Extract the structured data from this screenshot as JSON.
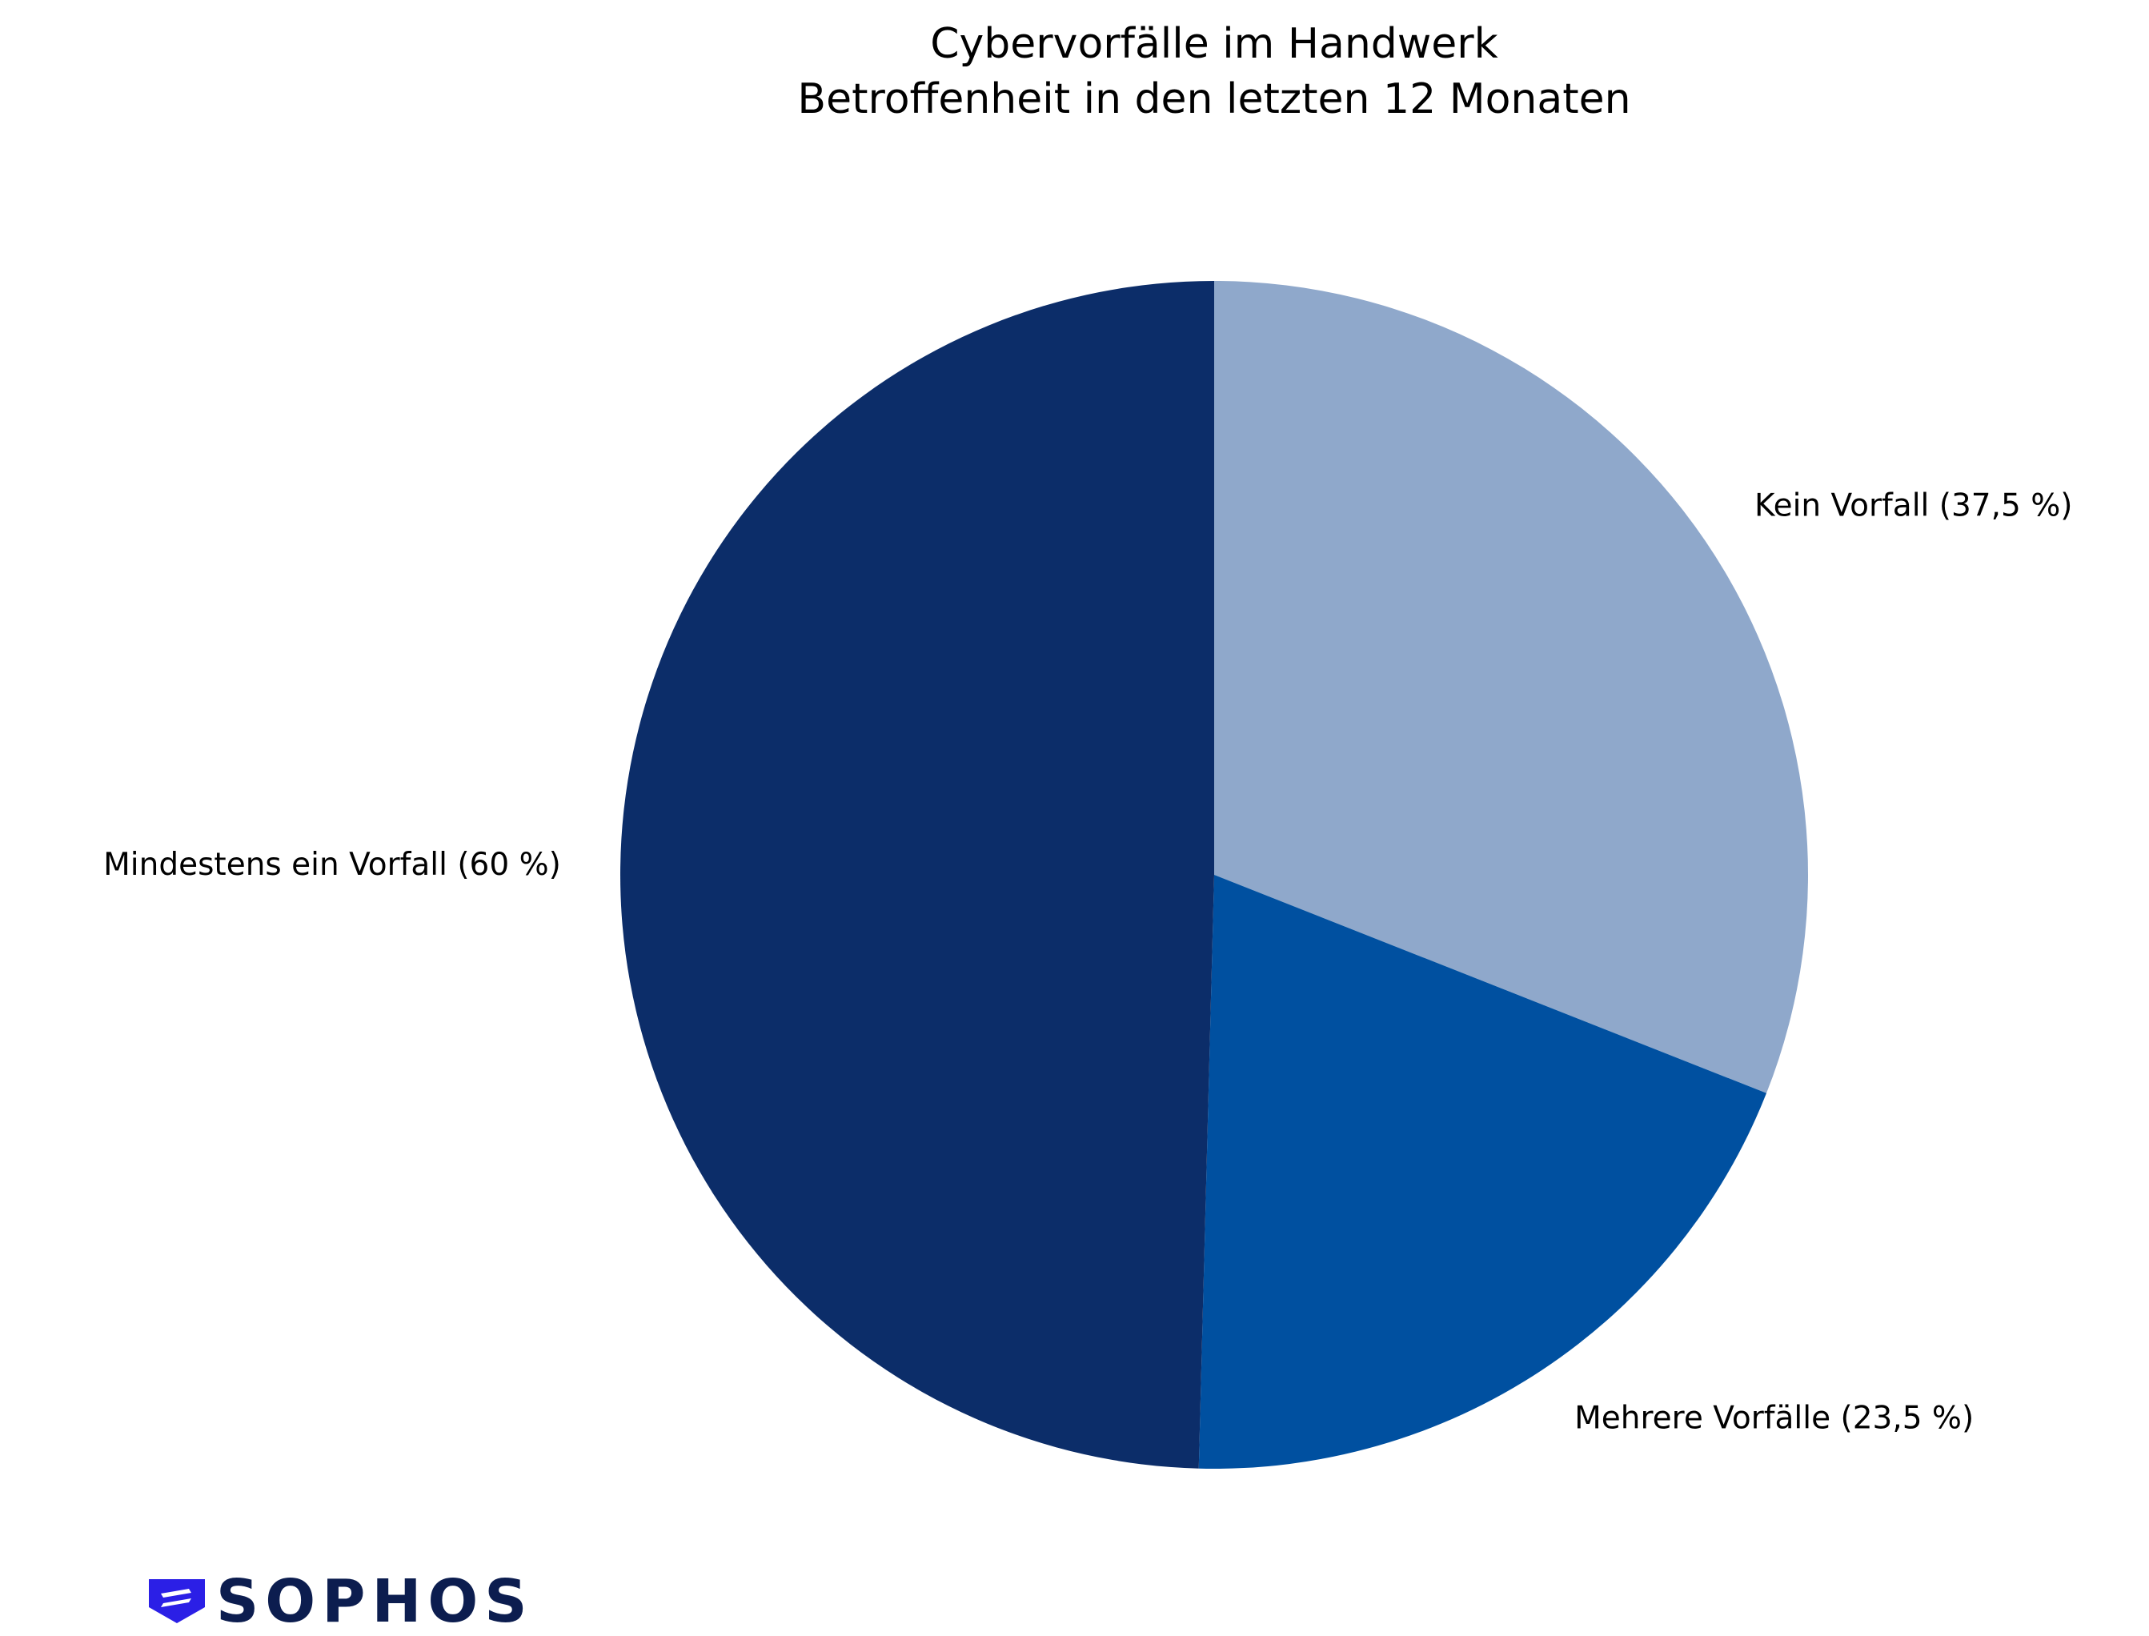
{
  "chart_data": {
    "type": "pie",
    "title": "Cybervorfälle im Handwerk",
    "subtitle": "Betroffenheit in den letzten 12 Monaten",
    "slices": [
      {
        "label": "Kein Vorfall (37,5 %)",
        "value": 37.5,
        "color": "#8fa8cb"
      },
      {
        "label": "Mehrere Vorfälle (23,5 %)",
        "value": 23.5,
        "color": "#0050a0"
      },
      {
        "label": "Mindestens ein Vorfall (60 %)",
        "value": 60,
        "color": "#0c2d69"
      }
    ],
    "start_angle": "12 o'clock",
    "direction": "clockwise",
    "legend": "none"
  },
  "logo": {
    "text": "SOPHOS",
    "icon": "sophos-shield-icon",
    "color": "#0c1d4f",
    "icon_color": "#2b1fe6"
  }
}
